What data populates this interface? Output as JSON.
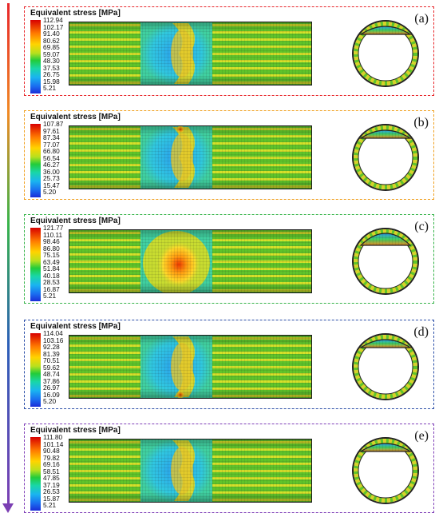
{
  "panels": [
    {
      "label": "(a)",
      "title": "Equivalent stress [MPa]",
      "border_color": "#e8262a",
      "ticks": [
        "112.94",
        "102.17",
        "91.40",
        "80.62",
        "69.85",
        "59.07",
        "48.30",
        "37.53",
        "26.75",
        "15.98",
        "5.21"
      ]
    },
    {
      "label": "(b)",
      "title": "Equivalent stress [MPa]",
      "border_color": "#f0a020",
      "ticks": [
        "107.87",
        "97.61",
        "87.34",
        "77.07",
        "66.80",
        "56.54",
        "46.27",
        "36.00",
        "25.73",
        "15.47",
        "5.20"
      ]
    },
    {
      "label": "(c)",
      "title": "Equivalent stress [MPa]",
      "border_color": "#37b44a",
      "ticks": [
        "121.77",
        "110.11",
        "98.46",
        "86.80",
        "75.15",
        "63.49",
        "51.84",
        "40.18",
        "28.53",
        "16.87",
        "5.21"
      ]
    },
    {
      "label": "(d)",
      "title": "Equivalent stress [MPa]",
      "border_color": "#2c4fa8",
      "ticks": [
        "114.04",
        "103.16",
        "92.28",
        "81.39",
        "70.51",
        "59.62",
        "48.74",
        "37.86",
        "26.97",
        "16.09",
        "5.20"
      ]
    },
    {
      "label": "(e)",
      "title": "Equivalent stress [MPa]",
      "border_color": "#8040b8",
      "ticks": [
        "111.80",
        "101.14",
        "90.48",
        "79.82",
        "69.16",
        "58.51",
        "47.85",
        "37.19",
        "26.53",
        "15.87",
        "5.21"
      ]
    }
  ]
}
